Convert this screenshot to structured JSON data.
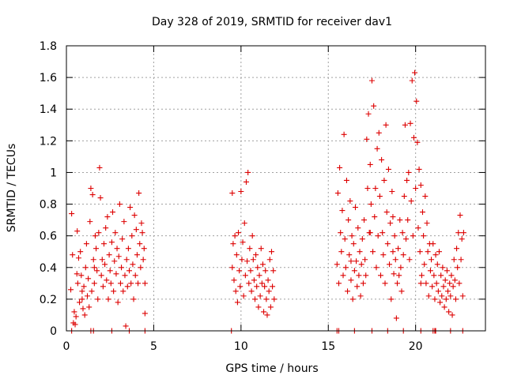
{
  "chart_data": {
    "type": "scatter",
    "title": "Day 328 of 2019, SRMTID for receiver dav1",
    "xlabel": "GPS time / hours",
    "ylabel": "SRMTID / TECUs",
    "xlim": [
      0,
      24
    ],
    "ylim": [
      0,
      1.8
    ],
    "xticks": [
      0,
      5,
      10,
      15,
      20
    ],
    "xtick_labels": [
      "0",
      "5",
      "10",
      "15",
      "20"
    ],
    "yticks": [
      0,
      0.2,
      0.4,
      0.6,
      0.8,
      1,
      1.2,
      1.4,
      1.6,
      1.8
    ],
    "ytick_labels": [
      "0",
      "0.2",
      "0.4",
      "0.6",
      "0.8",
      "1",
      "1.2",
      "1.4",
      "1.6",
      "1.8"
    ],
    "grid": true,
    "marker": "plus",
    "color": "#dd0000",
    "series": [
      {
        "name": "dav1",
        "points": [
          [
            0.25,
            0.26
          ],
          [
            0.3,
            0.74
          ],
          [
            0.35,
            0.48
          ],
          [
            0.4,
            0.05
          ],
          [
            0.45,
            0.12
          ],
          [
            0.5,
            0.04
          ],
          [
            0.55,
            0.09
          ],
          [
            0.6,
            0.36
          ],
          [
            0.62,
            0.63
          ],
          [
            0.65,
            0.3
          ],
          [
            0.7,
            0.46
          ],
          [
            0.75,
            0.18
          ],
          [
            0.8,
            0.5
          ],
          [
            0.85,
            0.35
          ],
          [
            0.9,
            0.2
          ],
          [
            0.95,
            0.14
          ],
          [
            1.0,
            0.28
          ],
          [
            1.05,
            0.1
          ],
          [
            1.1,
            0.4
          ],
          [
            1.15,
            0.55
          ],
          [
            1.2,
            0.22
          ],
          [
            1.25,
            0.33
          ],
          [
            1.3,
            0.15
          ],
          [
            1.35,
            0.69
          ],
          [
            1.4,
            0.9
          ],
          [
            1.45,
            0.25
          ],
          [
            1.5,
            0.86
          ],
          [
            1.55,
            0.45
          ],
          [
            1.6,
            0.3
          ],
          [
            1.65,
            0.6
          ],
          [
            1.7,
            0.52
          ],
          [
            1.75,
            0.38
          ],
          [
            1.8,
            0.2
          ],
          [
            1.85,
            0.62
          ],
          [
            1.9,
            1.03
          ],
          [
            1.95,
            0.84
          ],
          [
            2.0,
            0.35
          ],
          [
            2.05,
            0.45
          ],
          [
            2.1,
            0.28
          ],
          [
            2.15,
            0.55
          ],
          [
            2.2,
            0.42
          ],
          [
            2.25,
            0.65
          ],
          [
            2.3,
            0.32
          ],
          [
            2.35,
            0.72
          ],
          [
            2.4,
            0.2
          ],
          [
            2.45,
            0.48
          ],
          [
            2.5,
            0.38
          ],
          [
            2.55,
            0.3
          ],
          [
            2.6,
            0.56
          ],
          [
            2.65,
            0.75
          ],
          [
            2.7,
            0.25
          ],
          [
            2.75,
            0.44
          ],
          [
            2.8,
            0.62
          ],
          [
            2.85,
            0.36
          ],
          [
            2.9,
            0.52
          ],
          [
            2.95,
            0.18
          ],
          [
            3.0,
            0.47
          ],
          [
            3.05,
            0.8
          ],
          [
            3.1,
            0.3
          ],
          [
            3.15,
            0.4
          ],
          [
            3.2,
            0.58
          ],
          [
            3.25,
            0.25
          ],
          [
            3.3,
            0.69
          ],
          [
            3.35,
            0.35
          ],
          [
            3.4,
            0.03
          ],
          [
            3.45,
            0.45
          ],
          [
            3.5,
            0.28
          ],
          [
            3.55,
            0.52
          ],
          [
            3.6,
            0.38
          ],
          [
            3.65,
            0.78
          ],
          [
            3.7,
            0.3
          ],
          [
            3.75,
            0.6
          ],
          [
            3.8,
            0.42
          ],
          [
            3.85,
            0.2
          ],
          [
            3.9,
            0.73
          ],
          [
            3.95,
            0.35
          ],
          [
            4.0,
            0.64
          ],
          [
            4.05,
            0.48
          ],
          [
            4.1,
            0.3
          ],
          [
            4.15,
            0.87
          ],
          [
            4.2,
            0.55
          ],
          [
            4.25,
            0.4
          ],
          [
            4.3,
            0.68
          ],
          [
            4.35,
            0.62
          ],
          [
            4.4,
            0.45
          ],
          [
            4.45,
            0.52
          ],
          [
            4.5,
            0.11
          ],
          [
            4.5,
            0.3
          ],
          [
            0.9,
            0.25
          ],
          [
            1.6,
            0.4
          ],
          [
            9.5,
            0.87
          ],
          [
            9.5,
            0.4
          ],
          [
            9.55,
            0.55
          ],
          [
            9.6,
            0.32
          ],
          [
            9.65,
            0.6
          ],
          [
            9.7,
            0.25
          ],
          [
            9.75,
            0.48
          ],
          [
            9.8,
            0.18
          ],
          [
            9.85,
            0.62
          ],
          [
            9.9,
            0.38
          ],
          [
            9.95,
            0.28
          ],
          [
            10.0,
            0.88
          ],
          [
            10.05,
            0.45
          ],
          [
            10.1,
            0.56
          ],
          [
            10.15,
            0.22
          ],
          [
            10.2,
            0.68
          ],
          [
            10.25,
            0.35
          ],
          [
            10.3,
            0.94
          ],
          [
            10.35,
            0.44
          ],
          [
            10.4,
            1.0
          ],
          [
            10.45,
            0.3
          ],
          [
            10.5,
            0.52
          ],
          [
            10.55,
            0.38
          ],
          [
            10.6,
            0.25
          ],
          [
            10.65,
            0.6
          ],
          [
            10.7,
            0.45
          ],
          [
            10.75,
            0.32
          ],
          [
            10.8,
            0.2
          ],
          [
            10.85,
            0.48
          ],
          [
            10.9,
            0.28
          ],
          [
            10.95,
            0.4
          ],
          [
            11.0,
            0.15
          ],
          [
            11.05,
            0.35
          ],
          [
            11.1,
            0.22
          ],
          [
            11.15,
            0.52
          ],
          [
            11.2,
            0.3
          ],
          [
            11.25,
            0.42
          ],
          [
            11.3,
            0.12
          ],
          [
            11.35,
            0.28
          ],
          [
            11.4,
            0.38
          ],
          [
            11.45,
            0.2
          ],
          [
            11.5,
            0.1
          ],
          [
            11.55,
            0.32
          ],
          [
            11.6,
            0.25
          ],
          [
            11.65,
            0.45
          ],
          [
            11.7,
            0.15
          ],
          [
            11.75,
            0.5
          ],
          [
            11.8,
            0.28
          ],
          [
            11.85,
            0.38
          ],
          [
            11.9,
            0.2
          ],
          [
            15.5,
            0.42
          ],
          [
            15.55,
            0.87
          ],
          [
            15.6,
            0.3
          ],
          [
            15.65,
            1.03
          ],
          [
            15.7,
            0.62
          ],
          [
            15.75,
            0.5
          ],
          [
            15.8,
            0.76
          ],
          [
            15.85,
            0.35
          ],
          [
            15.9,
            1.24
          ],
          [
            15.95,
            0.58
          ],
          [
            16.0,
            0.4
          ],
          [
            16.05,
            0.95
          ],
          [
            16.1,
            0.25
          ],
          [
            16.15,
            0.7
          ],
          [
            16.2,
            0.48
          ],
          [
            16.25,
            0.82
          ],
          [
            16.3,
            0.32
          ],
          [
            16.35,
            0.6
          ],
          [
            16.4,
            0.2
          ],
          [
            16.45,
            0.55
          ],
          [
            16.5,
            0.38
          ],
          [
            16.55,
            0.78
          ],
          [
            16.6,
            0.44
          ],
          [
            16.65,
            0.28
          ],
          [
            16.7,
            0.65
          ],
          [
            16.75,
            0.35
          ],
          [
            16.8,
            0.5
          ],
          [
            16.85,
            0.22
          ],
          [
            16.9,
            0.42
          ],
          [
            16.95,
            0.58
          ],
          [
            17.0,
            0.3
          ],
          [
            17.05,
            0.7
          ],
          [
            17.1,
            0.45
          ],
          [
            17.15,
            0.35
          ],
          [
            17.2,
            1.21
          ],
          [
            17.25,
            0.9
          ],
          [
            17.3,
            1.37
          ],
          [
            17.35,
            0.62
          ],
          [
            17.4,
            1.05
          ],
          [
            17.45,
            0.8
          ],
          [
            17.5,
            1.58
          ],
          [
            17.55,
            0.5
          ],
          [
            17.6,
            1.42
          ],
          [
            17.65,
            0.72
          ],
          [
            17.7,
            0.9
          ],
          [
            17.75,
            0.4
          ],
          [
            17.8,
            1.15
          ],
          [
            17.85,
            0.6
          ],
          [
            17.9,
            1.25
          ],
          [
            17.95,
            0.85
          ],
          [
            18.0,
            0.35
          ],
          [
            18.05,
            1.08
          ],
          [
            18.1,
            0.62
          ],
          [
            18.15,
            0.48
          ],
          [
            18.2,
            0.95
          ],
          [
            18.25,
            0.3
          ],
          [
            18.3,
            1.3
          ],
          [
            18.35,
            0.75
          ],
          [
            18.4,
            0.55
          ],
          [
            18.45,
            1.02
          ],
          [
            18.5,
            0.42
          ],
          [
            18.55,
            0.68
          ],
          [
            18.6,
            0.2
          ],
          [
            18.65,
            0.88
          ],
          [
            18.7,
            0.5
          ],
          [
            18.75,
            0.36
          ],
          [
            18.8,
            0.6
          ],
          [
            18.85,
            0.45
          ],
          [
            18.9,
            0.08
          ],
          [
            18.95,
            0.3
          ],
          [
            19.0,
            0.52
          ],
          [
            19.05,
            0.35
          ],
          [
            19.1,
            0.7
          ],
          [
            19.15,
            0.4
          ],
          [
            19.2,
            0.25
          ],
          [
            19.25,
            0.62
          ],
          [
            19.3,
            0.48
          ],
          [
            19.35,
            0.85
          ],
          [
            19.4,
            1.3
          ],
          [
            19.45,
            0.58
          ],
          [
            19.5,
            0.95
          ],
          [
            19.55,
            0.7
          ],
          [
            19.6,
            1.0
          ],
          [
            19.65,
            0.45
          ],
          [
            19.7,
            1.31
          ],
          [
            19.75,
            0.82
          ],
          [
            19.8,
            1.58
          ],
          [
            19.85,
            0.6
          ],
          [
            19.9,
            1.22
          ],
          [
            19.95,
            1.63
          ],
          [
            20.0,
            0.9
          ],
          [
            20.05,
            1.45
          ],
          [
            20.1,
            1.19
          ],
          [
            20.15,
            0.65
          ],
          [
            20.2,
            1.02
          ],
          [
            20.25,
            0.5
          ],
          [
            20.3,
            0.92
          ],
          [
            20.35,
            0.35
          ],
          [
            20.4,
            0.75
          ],
          [
            20.45,
            0.6
          ],
          [
            20.5,
            0.42
          ],
          [
            20.55,
            0.85
          ],
          [
            20.6,
            0.3
          ],
          [
            20.65,
            0.68
          ],
          [
            20.7,
            0.5
          ],
          [
            20.75,
            0.22
          ],
          [
            20.8,
            0.55
          ],
          [
            20.85,
            0.38
          ],
          [
            20.9,
            0.45
          ],
          [
            20.95,
            0.28
          ],
          [
            21.0,
            0.55
          ],
          [
            21.05,
            0.35
          ],
          [
            21.1,
            0.2
          ],
          [
            21.15,
            0.48
          ],
          [
            21.2,
            0.3
          ],
          [
            21.25,
            0.42
          ],
          [
            21.3,
            0.25
          ],
          [
            21.35,
            0.5
          ],
          [
            21.4,
            0.18
          ],
          [
            21.45,
            0.35
          ],
          [
            21.5,
            0.22
          ],
          [
            21.55,
            0.4
          ],
          [
            21.6,
            0.28
          ],
          [
            21.65,
            0.15
          ],
          [
            21.7,
            0.32
          ],
          [
            21.75,
            0.2
          ],
          [
            21.8,
            0.38
          ],
          [
            21.85,
            0.25
          ],
          [
            21.9,
            0.12
          ],
          [
            21.95,
            0.3
          ],
          [
            22.0,
            0.22
          ],
          [
            22.05,
            0.35
          ],
          [
            22.1,
            0.1
          ],
          [
            22.15,
            0.28
          ],
          [
            22.2,
            0.45
          ],
          [
            22.25,
            0.32
          ],
          [
            22.3,
            0.2
          ],
          [
            22.35,
            0.52
          ],
          [
            22.4,
            0.4
          ],
          [
            22.45,
            0.62
          ],
          [
            22.5,
            0.3
          ],
          [
            22.55,
            0.73
          ],
          [
            22.6,
            0.45
          ],
          [
            22.65,
            0.58
          ],
          [
            22.7,
            0.22
          ],
          [
            22.75,
            0.62
          ],
          [
            16.3,
            0.44
          ],
          [
            17.4,
            0.62
          ],
          [
            18.7,
            0.72
          ],
          [
            20.3,
            0.3
          ]
        ],
        "zero_points": [
          0.3,
          1.4,
          1.55,
          2.6,
          3.6,
          4.5,
          9.45,
          15.5,
          15.6,
          16.5,
          17.5,
          18.4,
          19.3,
          20.3,
          21.0,
          21.1,
          21.15,
          22.0,
          22.7
        ]
      }
    ]
  }
}
